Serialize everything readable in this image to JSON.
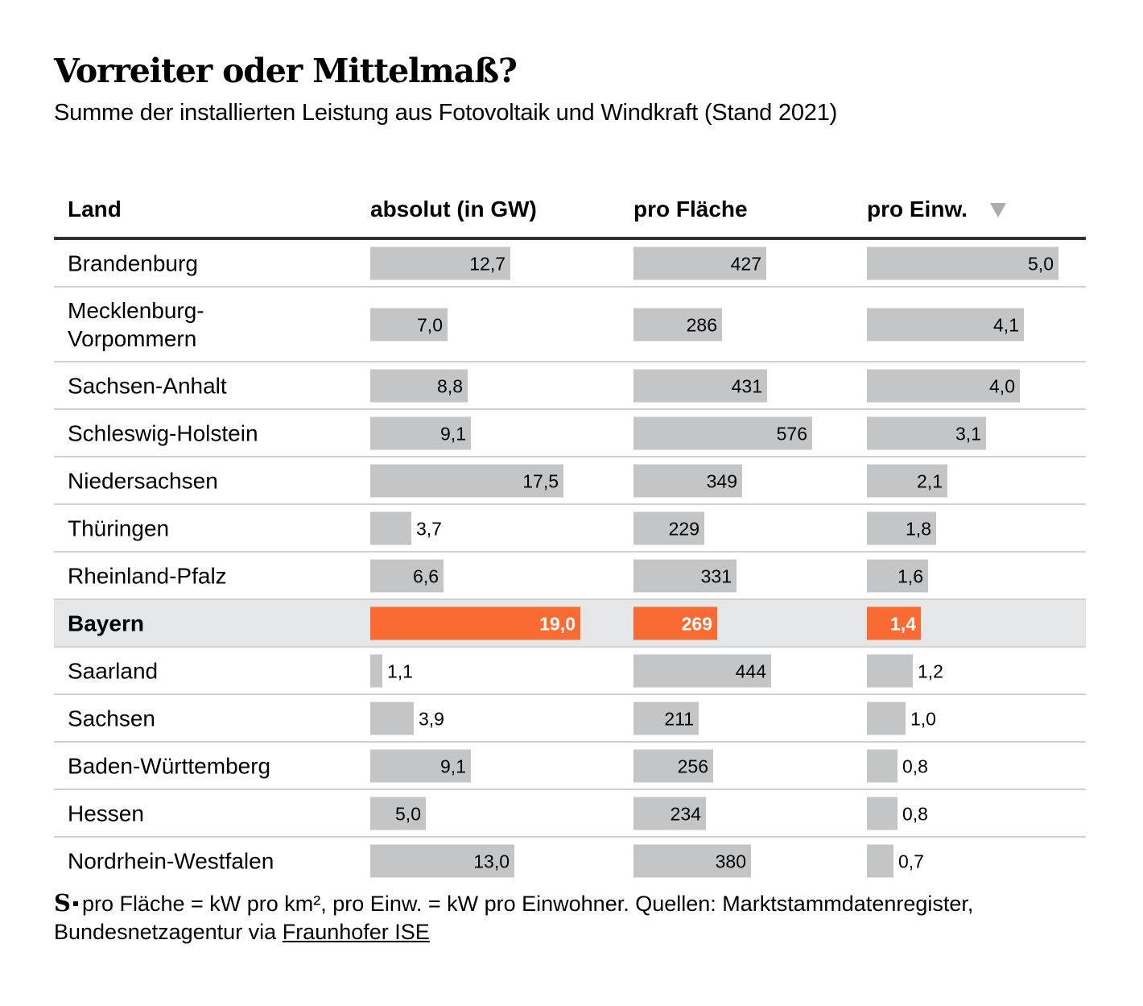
{
  "title": "Vorreiter oder Mittelmaß?",
  "subtitle": "Summe der installierten Leistung aus Fotovoltaik und Windkraft (Stand 2021)",
  "table": {
    "headers": {
      "land": "Land",
      "absolut": "absolut (in GW)",
      "flaeche": "pro Fläche",
      "einw": "pro Einw."
    },
    "sort": {
      "column": "einw",
      "direction": "descending",
      "icon": "sort-down-icon"
    }
  },
  "chart_data": {
    "type": "table",
    "title": "Vorreiter oder Mittelmaß?",
    "subtitle": "Summe der installierten Leistung aus Fotovoltaik und Windkraft (Stand 2021)",
    "columns": [
      "absolut",
      "flaeche",
      "einw"
    ],
    "highlight": "Bayern",
    "colors": {
      "bar": "#c3c5c7",
      "highlight_bar": "#f96b32",
      "highlight_row": "#e5e6e7",
      "sort_icon": "#a9abad"
    },
    "rows": [
      {
        "land": "Brandenburg",
        "absolut": 12.7,
        "absolut_label": "12,7",
        "flaeche": 427,
        "flaeche_label": "427",
        "einw": 5.0,
        "einw_label": "5,0"
      },
      {
        "land": "Mecklenburg-\nVorpommern",
        "absolut": 7.0,
        "absolut_label": "7,0",
        "flaeche": 286,
        "flaeche_label": "286",
        "einw": 4.1,
        "einw_label": "4,1"
      },
      {
        "land": "Sachsen-Anhalt",
        "absolut": 8.8,
        "absolut_label": "8,8",
        "flaeche": 431,
        "flaeche_label": "431",
        "einw": 4.0,
        "einw_label": "4,0"
      },
      {
        "land": "Schleswig-Holstein",
        "absolut": 9.1,
        "absolut_label": "9,1",
        "flaeche": 576,
        "flaeche_label": "576",
        "einw": 3.1,
        "einw_label": "3,1"
      },
      {
        "land": "Niedersachsen",
        "absolut": 17.5,
        "absolut_label": "17,5",
        "flaeche": 349,
        "flaeche_label": "349",
        "einw": 2.1,
        "einw_label": "2,1"
      },
      {
        "land": "Thüringen",
        "absolut": 3.7,
        "absolut_label": "3,7",
        "flaeche": 229,
        "flaeche_label": "229",
        "einw": 1.8,
        "einw_label": "1,8"
      },
      {
        "land": "Rheinland-Pfalz",
        "absolut": 6.6,
        "absolut_label": "6,6",
        "flaeche": 331,
        "flaeche_label": "331",
        "einw": 1.6,
        "einw_label": "1,6"
      },
      {
        "land": "Bayern",
        "absolut": 19.0,
        "absolut_label": "19,0",
        "flaeche": 269,
        "flaeche_label": "269",
        "einw": 1.4,
        "einw_label": "1,4"
      },
      {
        "land": "Saarland",
        "absolut": 1.1,
        "absolut_label": "1,1",
        "flaeche": 444,
        "flaeche_label": "444",
        "einw": 1.2,
        "einw_label": "1,2"
      },
      {
        "land": "Sachsen",
        "absolut": 3.9,
        "absolut_label": "3,9",
        "flaeche": 211,
        "flaeche_label": "211",
        "einw": 1.0,
        "einw_label": "1,0"
      },
      {
        "land": "Baden-Württemberg",
        "absolut": 9.1,
        "absolut_label": "9,1",
        "flaeche": 256,
        "flaeche_label": "256",
        "einw": 0.8,
        "einw_label": "0,8"
      },
      {
        "land": "Hessen",
        "absolut": 5.0,
        "absolut_label": "5,0",
        "flaeche": 234,
        "flaeche_label": "234",
        "einw": 0.8,
        "einw_label": "0,8"
      },
      {
        "land": "Nordrhein-Westfalen",
        "absolut": 13.0,
        "absolut_label": "13,0",
        "flaeche": 380,
        "flaeche_label": "380",
        "einw": 0.7,
        "einw_label": "0,7"
      }
    ]
  },
  "footer": {
    "logo": "S",
    "note_prefix": "pro Fläche = kW pro km², pro Einw. = kW pro Einwohner. Quellen: Marktstammdatenregister, Bundesnetzagentur via ",
    "link": "Fraunhofer ISE"
  }
}
